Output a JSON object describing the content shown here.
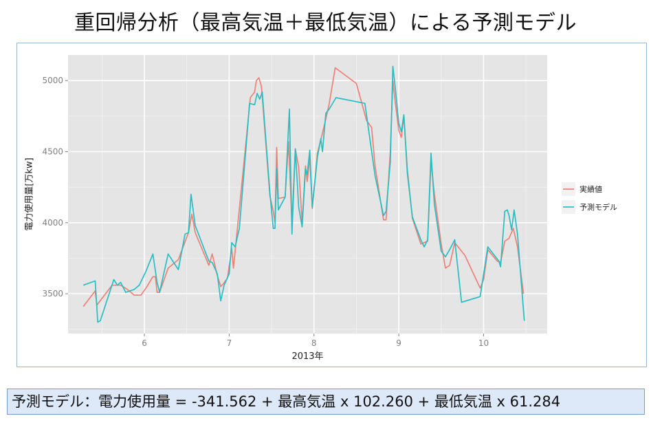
{
  "page": {
    "title": "重回帰分析（最高気温＋最低気温）による予測モデル",
    "formula": "予測モデル：電力使用量 = -341.562 + 最高気温 x 102.260 + 最低気温 x 61.284"
  },
  "chart_data": {
    "type": "line",
    "title": "",
    "xlabel": "2013年",
    "ylabel": "電力使用量[万kw]",
    "xlim": [
      5.1,
      10.75
    ],
    "ylim": [
      3220,
      5180
    ],
    "x_ticks": [
      6,
      7,
      8,
      9,
      10
    ],
    "y_ticks": [
      3500,
      4000,
      4500,
      5000
    ],
    "grid": true,
    "legend_position": "right",
    "colors": {
      "panel_bg": "#e5e5e5",
      "grid": "#ffffff",
      "actual": "#f07f77",
      "predicted": "#26bec3"
    },
    "series": [
      {
        "name": "実績値",
        "color": "#f07f77",
        "points": [
          [
            5.28,
            3410
          ],
          [
            5.42,
            3520
          ],
          [
            5.44,
            3420
          ],
          [
            5.62,
            3560
          ],
          [
            5.72,
            3560
          ],
          [
            5.8,
            3530
          ],
          [
            5.88,
            3490
          ],
          [
            5.96,
            3490
          ],
          [
            6.03,
            3550
          ],
          [
            6.1,
            3620
          ],
          [
            6.13,
            3620
          ],
          [
            6.15,
            3510
          ],
          [
            6.18,
            3510
          ],
          [
            6.28,
            3680
          ],
          [
            6.4,
            3740
          ],
          [
            6.52,
            3930
          ],
          [
            6.56,
            4060
          ],
          [
            6.6,
            3930
          ],
          [
            6.76,
            3700
          ],
          [
            6.8,
            3780
          ],
          [
            6.86,
            3630
          ],
          [
            6.9,
            3550
          ],
          [
            6.93,
            3570
          ],
          [
            6.98,
            3610
          ],
          [
            7.03,
            3820
          ],
          [
            7.05,
            3680
          ],
          [
            7.2,
            4580
          ],
          [
            7.25,
            4880
          ],
          [
            7.3,
            4920
          ],
          [
            7.32,
            5000
          ],
          [
            7.35,
            5020
          ],
          [
            7.38,
            4960
          ],
          [
            7.48,
            4190
          ],
          [
            7.52,
            4080
          ],
          [
            7.54,
            4000
          ],
          [
            7.56,
            4530
          ],
          [
            7.58,
            4170
          ],
          [
            7.66,
            4180
          ],
          [
            7.7,
            4570
          ],
          [
            7.74,
            4000
          ],
          [
            7.78,
            4520
          ],
          [
            7.82,
            4390
          ],
          [
            7.86,
            4000
          ],
          [
            7.9,
            4400
          ],
          [
            7.92,
            4290
          ],
          [
            7.95,
            4460
          ],
          [
            7.98,
            4100
          ],
          [
            8.04,
            4490
          ],
          [
            8.08,
            4580
          ],
          [
            8.14,
            4730
          ],
          [
            8.18,
            4840
          ],
          [
            8.25,
            5090
          ],
          [
            8.5,
            4980
          ],
          [
            8.62,
            4720
          ],
          [
            8.68,
            4670
          ],
          [
            8.72,
            4400
          ],
          [
            8.82,
            4020
          ],
          [
            8.85,
            4020
          ],
          [
            8.9,
            4500
          ],
          [
            8.93,
            5000
          ],
          [
            8.96,
            4840
          ],
          [
            9.0,
            4650
          ],
          [
            9.03,
            4600
          ],
          [
            9.06,
            4750
          ],
          [
            9.1,
            4380
          ],
          [
            9.16,
            4030
          ],
          [
            9.26,
            3850
          ],
          [
            9.3,
            3860
          ],
          [
            9.34,
            3870
          ],
          [
            9.38,
            4430
          ],
          [
            9.42,
            4200
          ],
          [
            9.5,
            3850
          ],
          [
            9.55,
            3680
          ],
          [
            9.6,
            3700
          ],
          [
            9.66,
            3860
          ],
          [
            9.78,
            3770
          ],
          [
            9.96,
            3540
          ],
          [
            10.0,
            3600
          ],
          [
            10.05,
            3810
          ],
          [
            10.16,
            3730
          ],
          [
            10.2,
            3720
          ],
          [
            10.25,
            3870
          ],
          [
            10.3,
            3890
          ],
          [
            10.35,
            3960
          ],
          [
            10.4,
            3830
          ],
          [
            10.47,
            3500
          ]
        ]
      },
      {
        "name": "予測モデル",
        "color": "#26bec3",
        "points": [
          [
            5.28,
            3560
          ],
          [
            5.42,
            3590
          ],
          [
            5.45,
            3300
          ],
          [
            5.48,
            3310
          ],
          [
            5.64,
            3600
          ],
          [
            5.68,
            3560
          ],
          [
            5.72,
            3580
          ],
          [
            5.78,
            3510
          ],
          [
            5.88,
            3530
          ],
          [
            5.94,
            3560
          ],
          [
            6.02,
            3660
          ],
          [
            6.1,
            3780
          ],
          [
            6.15,
            3580
          ],
          [
            6.18,
            3510
          ],
          [
            6.28,
            3780
          ],
          [
            6.4,
            3670
          ],
          [
            6.48,
            3920
          ],
          [
            6.52,
            3930
          ],
          [
            6.55,
            4200
          ],
          [
            6.6,
            3980
          ],
          [
            6.76,
            3730
          ],
          [
            6.8,
            3720
          ],
          [
            6.86,
            3640
          ],
          [
            6.9,
            3450
          ],
          [
            6.94,
            3560
          ],
          [
            7.0,
            3640
          ],
          [
            7.03,
            3860
          ],
          [
            7.07,
            3830
          ],
          [
            7.12,
            3960
          ],
          [
            7.2,
            4540
          ],
          [
            7.24,
            4840
          ],
          [
            7.3,
            4830
          ],
          [
            7.33,
            4910
          ],
          [
            7.36,
            4870
          ],
          [
            7.39,
            4920
          ],
          [
            7.48,
            4210
          ],
          [
            7.52,
            3960
          ],
          [
            7.54,
            3960
          ],
          [
            7.56,
            4380
          ],
          [
            7.58,
            4090
          ],
          [
            7.66,
            4180
          ],
          [
            7.71,
            4800
          ],
          [
            7.74,
            3920
          ],
          [
            7.78,
            4520
          ],
          [
            7.82,
            4110
          ],
          [
            7.86,
            3970
          ],
          [
            7.9,
            4380
          ],
          [
            7.92,
            4340
          ],
          [
            7.95,
            4510
          ],
          [
            7.98,
            4110
          ],
          [
            8.04,
            4460
          ],
          [
            8.08,
            4590
          ],
          [
            8.1,
            4500
          ],
          [
            8.14,
            4770
          ],
          [
            8.18,
            4800
          ],
          [
            8.26,
            4880
          ],
          [
            8.6,
            4840
          ],
          [
            8.72,
            4330
          ],
          [
            8.82,
            4050
          ],
          [
            8.85,
            4080
          ],
          [
            8.9,
            4430
          ],
          [
            8.93,
            5100
          ],
          [
            8.96,
            4940
          ],
          [
            9.0,
            4700
          ],
          [
            9.03,
            4640
          ],
          [
            9.06,
            4760
          ],
          [
            9.1,
            4350
          ],
          [
            9.16,
            4040
          ],
          [
            9.26,
            3880
          ],
          [
            9.3,
            3830
          ],
          [
            9.34,
            3880
          ],
          [
            9.38,
            4490
          ],
          [
            9.42,
            4130
          ],
          [
            9.5,
            3800
          ],
          [
            9.55,
            3760
          ],
          [
            9.6,
            3810
          ],
          [
            9.66,
            3880
          ],
          [
            9.74,
            3440
          ],
          [
            9.96,
            3480
          ],
          [
            10.05,
            3830
          ],
          [
            10.18,
            3730
          ],
          [
            10.2,
            3690
          ],
          [
            10.25,
            4080
          ],
          [
            10.28,
            4090
          ],
          [
            10.3,
            4050
          ],
          [
            10.33,
            3950
          ],
          [
            10.36,
            4090
          ],
          [
            10.4,
            3920
          ],
          [
            10.48,
            3310
          ]
        ]
      }
    ]
  }
}
